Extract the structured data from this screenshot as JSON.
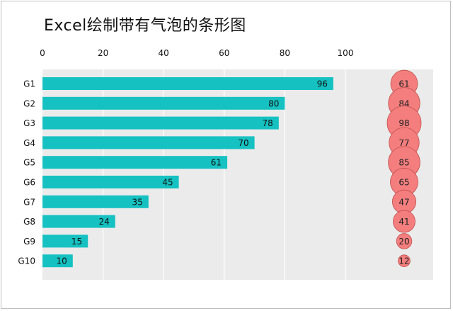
{
  "title": "Excel绘制带有气泡的条形图",
  "chart_data": {
    "type": "bar",
    "orientation": "horizontal",
    "title": "Excel绘制带有气泡的条形图",
    "categories": [
      "G1",
      "G2",
      "G3",
      "G4",
      "G5",
      "G6",
      "G7",
      "G8",
      "G9",
      "G10"
    ],
    "values": [
      96,
      80,
      78,
      70,
      61,
      45,
      35,
      24,
      15,
      10
    ],
    "bubbles": [
      61,
      84,
      98,
      77,
      85,
      65,
      47,
      41,
      20,
      12
    ],
    "xticks": [
      0,
      20,
      40,
      60,
      80,
      100
    ],
    "xlim": [
      0,
      130
    ],
    "x_axis_position": "top",
    "grid": true,
    "bar_color": "#16c1c1",
    "bubble_color": "#f47e7e",
    "bubble_stroke": "#c0504d",
    "plot_background": "#ebebeb",
    "gridline_color": "#ffffff"
  }
}
